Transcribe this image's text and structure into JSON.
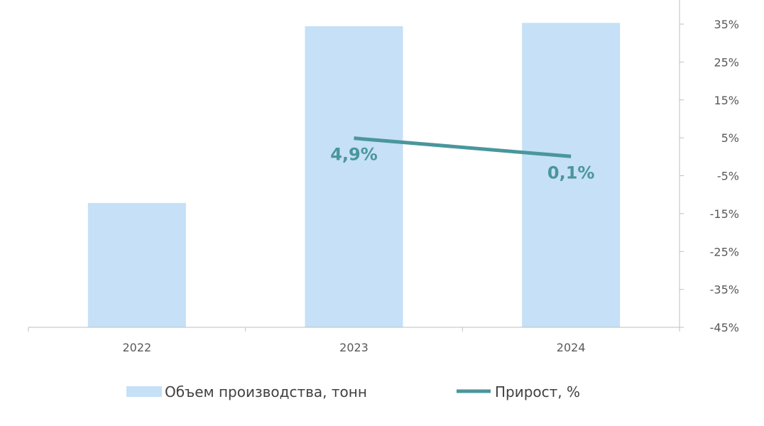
{
  "chart_data": {
    "type": "bar+line",
    "categories": [
      "2022",
      "2023",
      "2024"
    ],
    "series": [
      {
        "name": "Объем производства, тонн",
        "type": "bar",
        "axis": "primary",
        "values": [
          38,
          92,
          93
        ],
        "color": "#c5e0f7"
      },
      {
        "name": "Прирост, %",
        "type": "line",
        "axis": "secondary",
        "values": [
          null,
          4.9,
          0.1
        ],
        "data_labels": [
          "",
          "4,9%",
          "0,1%"
        ],
        "color": "#4a969c"
      }
    ],
    "primary_axis": {
      "visible": false,
      "ylim": [
        0,
        100
      ]
    },
    "secondary_axis": {
      "position": "right",
      "ylim": [
        -45,
        35
      ],
      "ticks": [
        35,
        25,
        15,
        5,
        -5,
        -15,
        -25,
        -35,
        -45
      ],
      "tick_labels": [
        "35%",
        "25%",
        "15%",
        "5%",
        "-5%",
        "-15%",
        "-25%",
        "-35%",
        "-45%"
      ]
    },
    "grid": false,
    "legend": {
      "placement": "bottom",
      "entries": [
        "Объем производства, тонн",
        "Прирост, %"
      ]
    }
  }
}
